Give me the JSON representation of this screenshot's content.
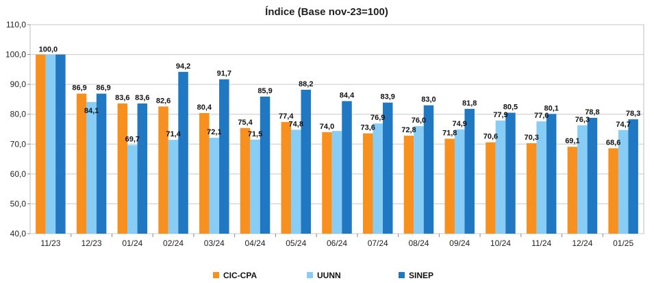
{
  "chart_data": {
    "type": "bar",
    "title": "Índice (Base nov-23=100)",
    "categories": [
      "11/23",
      "12/23",
      "01/24",
      "02/24",
      "03/24",
      "04/24",
      "05/24",
      "06/24",
      "07/24",
      "08/24",
      "09/24",
      "10/24",
      "11/24",
      "12/24",
      "01/25"
    ],
    "series": [
      {
        "name": "CIC-CPA",
        "color": "#f7901e",
        "values": [
          100.0,
          86.9,
          83.6,
          82.6,
          80.4,
          75.4,
          77.4,
          74.0,
          73.6,
          72.8,
          71.8,
          70.6,
          70.3,
          69.1,
          68.6
        ],
        "labels": [
          "100,0",
          "86,9",
          "83,6",
          "82,6",
          "80,4",
          "75,4",
          "77,4",
          "74,0",
          "73,6",
          "72,8",
          "71,8",
          "70,6",
          "70,3",
          "69,1",
          "68,6"
        ]
      },
      {
        "name": "UUNN",
        "color": "#87cdf5",
        "values": [
          100.0,
          84.1,
          69.7,
          71.4,
          72.1,
          71.5,
          74.8,
          74.4,
          76.9,
          76.0,
          74.9,
          77.9,
          77.6,
          76.3,
          74.7
        ],
        "labels": [
          "",
          "84,1",
          "69,7",
          "71,4",
          "72,1",
          "71,5",
          "74,8",
          "",
          "76,9",
          "76,0",
          "74,9",
          "77,9",
          "77,6",
          "76,3",
          "74,7"
        ]
      },
      {
        "name": "SINEP",
        "color": "#1f78c1",
        "values": [
          100.0,
          86.9,
          83.6,
          94.2,
          91.7,
          85.9,
          88.2,
          84.4,
          83.9,
          83.0,
          81.8,
          80.5,
          80.1,
          78.8,
          78.3
        ],
        "labels": [
          "",
          "86,9",
          "83,6",
          "94,2",
          "91,7",
          "85,9",
          "88,2",
          "84,4",
          "83,9",
          "83,0",
          "81,8",
          "80,5",
          "80,1",
          "78,8",
          "78,3"
        ]
      }
    ],
    "ylim": [
      40,
      110
    ],
    "yticks": [
      "40,0",
      "50,0",
      "60,0",
      "70,0",
      "80,0",
      "90,0",
      "100,0",
      "110,0"
    ],
    "grid": true,
    "legend": "bottom"
  }
}
